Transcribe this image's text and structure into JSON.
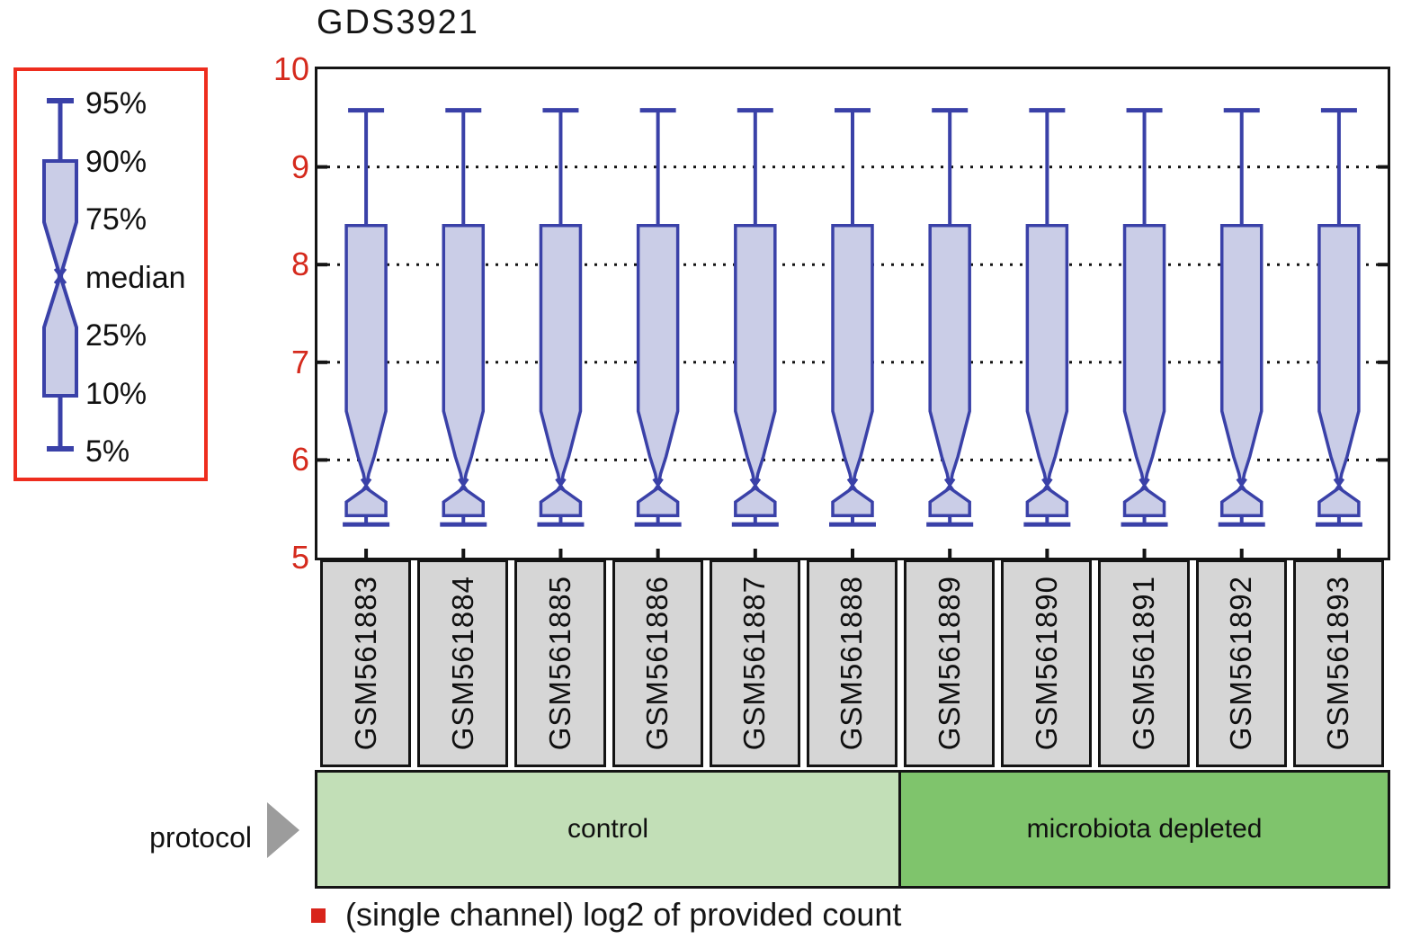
{
  "title": "GDS3921",
  "legend": {
    "items": [
      "95%",
      "90%",
      "75%",
      "median",
      "25%",
      "10%",
      "5%"
    ]
  },
  "y_axis": {
    "tick_labels": [
      "10",
      "9",
      "8",
      "7",
      "6",
      "5"
    ]
  },
  "protocol": {
    "label": "protocol",
    "groups": [
      {
        "label": "control",
        "sample_count": 6,
        "color": "#c2dfb7"
      },
      {
        "label": "microbiota depleted",
        "sample_count": 5,
        "color": "#7fc46c"
      }
    ]
  },
  "footnote": "(single channel) log2 of provided count",
  "colors": {
    "box_stroke": "#3a41a8",
    "box_fill": "#cacde7",
    "axis_red": "#d52a1d",
    "legend_border": "#ee2d1e",
    "grid_black": "#141414",
    "sample_box_bg": "#d6d6d6",
    "footnote_bullet": "#d8241b",
    "protocol_arrow": "#9c9c9c"
  },
  "chart_data": {
    "type": "boxplot",
    "title": "GDS3921",
    "ylabel": "(single channel) log2 of provided count",
    "ylim": [
      5,
      10
    ],
    "yticks": [
      10,
      9,
      8,
      7,
      6,
      5
    ],
    "gridlines": [
      9,
      8,
      7,
      6
    ],
    "grid": "dotted-horizontal",
    "legend_position": "left",
    "whisker_legend": [
      "95%",
      "90%",
      "75%",
      "median",
      "25%",
      "10%",
      "5%"
    ],
    "categories": [
      "GSM561883",
      "GSM561884",
      "GSM561885",
      "GSM561886",
      "GSM561887",
      "GSM561888",
      "GSM561889",
      "GSM561890",
      "GSM561891",
      "GSM561892",
      "GSM561893"
    ],
    "groups": [
      {
        "name": "control",
        "samples": [
          "GSM561883",
          "GSM561884",
          "GSM561885",
          "GSM561886",
          "GSM561887",
          "GSM561888"
        ]
      },
      {
        "name": "microbiota depleted",
        "samples": [
          "GSM561889",
          "GSM561890",
          "GSM561891",
          "GSM561892",
          "GSM561893"
        ]
      }
    ],
    "series": [
      {
        "sample": "GSM561883",
        "p5": 5.34,
        "p10": 5.43,
        "p25": 5.57,
        "median": 5.75,
        "p75": 6.5,
        "p90": 8.4,
        "p95": 9.58
      },
      {
        "sample": "GSM561884",
        "p5": 5.34,
        "p10": 5.43,
        "p25": 5.57,
        "median": 5.75,
        "p75": 6.5,
        "p90": 8.4,
        "p95": 9.58
      },
      {
        "sample": "GSM561885",
        "p5": 5.34,
        "p10": 5.43,
        "p25": 5.57,
        "median": 5.75,
        "p75": 6.5,
        "p90": 8.4,
        "p95": 9.58
      },
      {
        "sample": "GSM561886",
        "p5": 5.34,
        "p10": 5.43,
        "p25": 5.57,
        "median": 5.75,
        "p75": 6.5,
        "p90": 8.4,
        "p95": 9.58
      },
      {
        "sample": "GSM561887",
        "p5": 5.34,
        "p10": 5.43,
        "p25": 5.57,
        "median": 5.75,
        "p75": 6.5,
        "p90": 8.4,
        "p95": 9.58
      },
      {
        "sample": "GSM561888",
        "p5": 5.34,
        "p10": 5.43,
        "p25": 5.57,
        "median": 5.75,
        "p75": 6.5,
        "p90": 8.4,
        "p95": 9.58
      },
      {
        "sample": "GSM561889",
        "p5": 5.34,
        "p10": 5.43,
        "p25": 5.57,
        "median": 5.75,
        "p75": 6.5,
        "p90": 8.4,
        "p95": 9.58
      },
      {
        "sample": "GSM561890",
        "p5": 5.34,
        "p10": 5.43,
        "p25": 5.57,
        "median": 5.75,
        "p75": 6.5,
        "p90": 8.4,
        "p95": 9.58
      },
      {
        "sample": "GSM561891",
        "p5": 5.34,
        "p10": 5.43,
        "p25": 5.57,
        "median": 5.75,
        "p75": 6.5,
        "p90": 8.4,
        "p95": 9.58
      },
      {
        "sample": "GSM561892",
        "p5": 5.34,
        "p10": 5.43,
        "p25": 5.57,
        "median": 5.75,
        "p75": 6.5,
        "p90": 8.4,
        "p95": 9.58
      },
      {
        "sample": "GSM561893",
        "p5": 5.34,
        "p10": 5.43,
        "p25": 5.57,
        "median": 5.75,
        "p75": 6.5,
        "p90": 8.4,
        "p95": 9.58
      }
    ]
  }
}
